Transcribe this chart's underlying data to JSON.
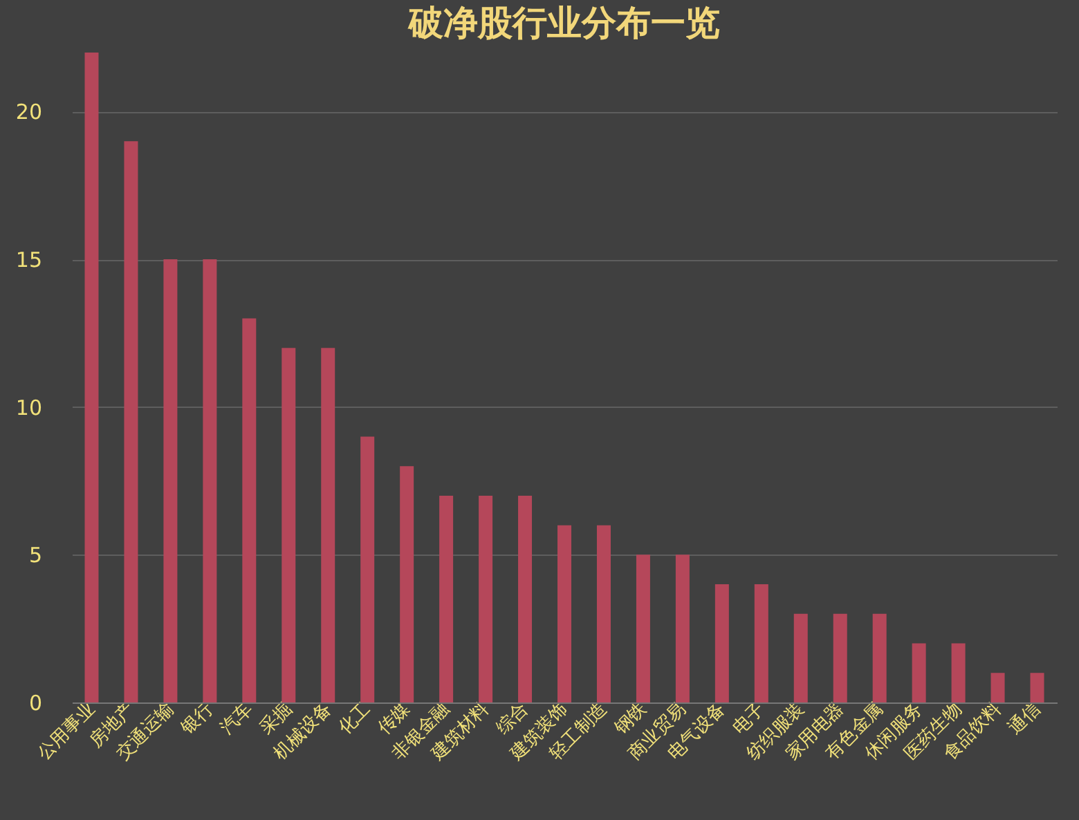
{
  "chart_data": {
    "type": "bar",
    "title": "破净股行业分布一览",
    "categories": [
      "公用事业",
      "房地产",
      "交通运输",
      "银行",
      "汽车",
      "采掘",
      "机械设备",
      "化工",
      "传媒",
      "非银金融",
      "建筑材料",
      "综合",
      "建筑装饰",
      "轻工制造",
      "钢铁",
      "商业贸易",
      "电气设备",
      "电子",
      "纺织服装",
      "家用电器",
      "有色金属",
      "休闲服务",
      "医药生物",
      "食品饮料",
      "通信"
    ],
    "values": [
      22,
      19,
      15,
      15,
      13,
      12,
      12,
      9,
      8,
      7,
      7,
      7,
      6,
      6,
      5,
      5,
      4,
      4,
      3,
      3,
      3,
      2,
      2,
      1,
      1
    ],
    "color": "#b5475a",
    "ylim": [
      0,
      22
    ],
    "yticks": [
      0,
      5,
      10,
      15,
      20
    ],
    "grid": "y"
  }
}
